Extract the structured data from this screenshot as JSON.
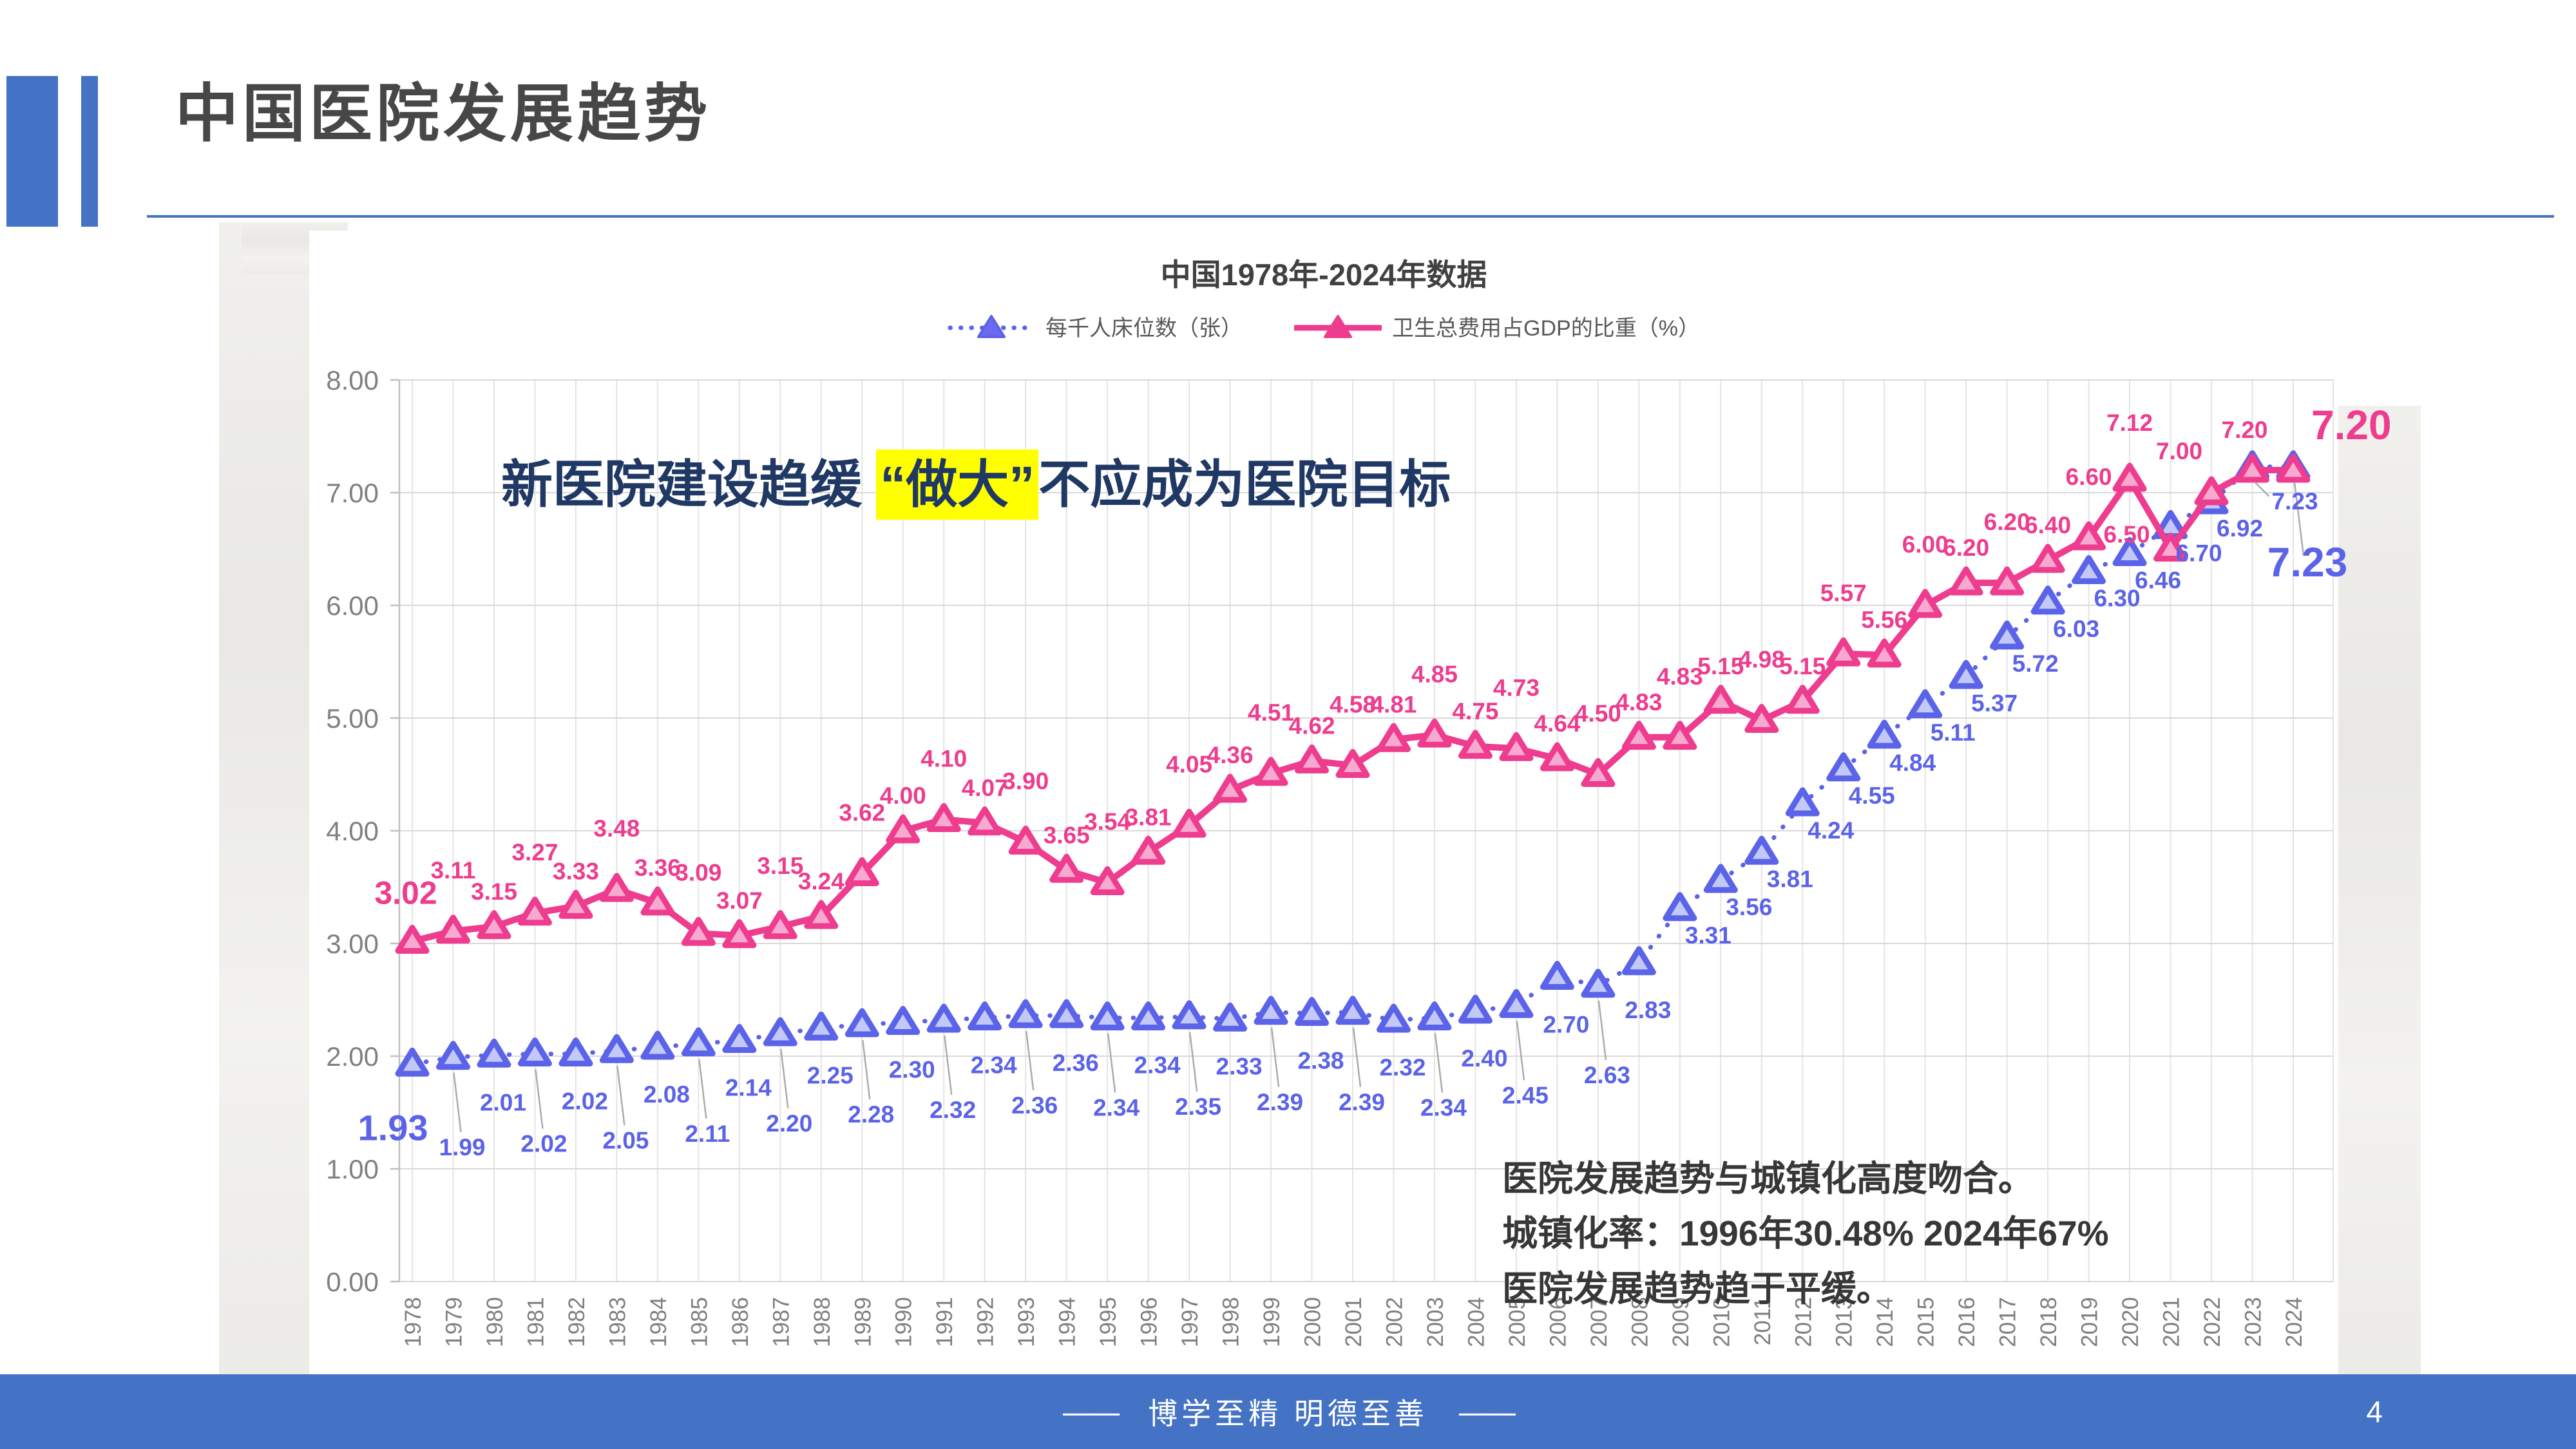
{
  "slide": {
    "title": "中国医院发展趋势",
    "page_number": "4",
    "footer": {
      "dash": "——",
      "motto": "博学至精  明德至善"
    }
  },
  "chart": {
    "title": "中国1978年-2024年数据",
    "legend": [
      {
        "label": "每千人床位数（张）"
      },
      {
        "label": "卫生总费用占GDP的比重（%）"
      }
    ]
  },
  "annotations": {
    "headline_pre": "新医院建设趋缓 ",
    "headline_highlight": "“做大”",
    "headline_post": "不应成为医院目标",
    "info_lines": [
      "医院发展趋势与城镇化高度吻合。",
      "城镇化率：1996年30.48%  2024年67%",
      "医院发展趋势趋于平缓。"
    ]
  },
  "colors": {
    "accent": "#4472C4",
    "beds_line": "#5B63E8",
    "beds_fill": "#C3C9F6",
    "gdp_line": "#EE3C8E",
    "gdp_fill": "#F7A9CF",
    "highlight_yellow": "#FFFF00",
    "headline_text": "#1F3864",
    "grid_h": "#D9D9D9",
    "grid_v": "#E4E4E4",
    "axis": "#BFBFBF",
    "tick_text": "#7F7F7F",
    "leader": "#ABABAB"
  },
  "chart_data": {
    "type": "line",
    "x": [
      1978,
      1979,
      1980,
      1981,
      1982,
      1983,
      1984,
      1985,
      1986,
      1987,
      1988,
      1989,
      1990,
      1991,
      1992,
      1993,
      1994,
      1995,
      1996,
      1997,
      1998,
      1999,
      2000,
      2001,
      2002,
      2003,
      2004,
      2005,
      2006,
      2007,
      2008,
      2009,
      2010,
      2011,
      2012,
      2013,
      2014,
      2015,
      2016,
      2017,
      2018,
      2019,
      2020,
      2021,
      2022,
      2023,
      2024
    ],
    "series": [
      {
        "name": "每千人床位数（张）",
        "values": [
          1.93,
          1.99,
          2.01,
          2.02,
          2.02,
          2.05,
          2.08,
          2.11,
          2.14,
          2.2,
          2.25,
          2.28,
          2.3,
          2.32,
          2.34,
          2.36,
          2.36,
          2.34,
          2.34,
          2.35,
          2.33,
          2.39,
          2.38,
          2.39,
          2.32,
          2.34,
          2.4,
          2.45,
          2.7,
          2.63,
          2.83,
          3.31,
          3.56,
          3.81,
          4.24,
          4.55,
          4.84,
          5.11,
          5.37,
          5.72,
          6.03,
          6.3,
          6.46,
          6.7,
          6.92,
          7.23,
          7.23
        ]
      },
      {
        "name": "卫生总费用占GDP的比重（%）",
        "values": [
          3.02,
          3.11,
          3.15,
          3.27,
          3.33,
          3.48,
          3.36,
          3.09,
          3.07,
          3.15,
          3.24,
          3.62,
          4.0,
          4.1,
          4.07,
          3.9,
          3.65,
          3.54,
          3.81,
          4.05,
          4.36,
          4.51,
          4.62,
          4.58,
          4.81,
          4.85,
          4.75,
          4.73,
          4.64,
          4.5,
          4.83,
          4.83,
          5.15,
          4.98,
          5.15,
          5.57,
          5.56,
          6.0,
          6.2,
          6.2,
          6.4,
          6.6,
          7.12,
          6.5,
          7.0,
          7.2,
          7.2
        ]
      }
    ],
    "ylim": [
      0,
      8
    ],
    "ytick_step": 1,
    "ytick_decimals": 2,
    "grid": true,
    "legend_position": "top",
    "x_tick_rotation": -90
  }
}
